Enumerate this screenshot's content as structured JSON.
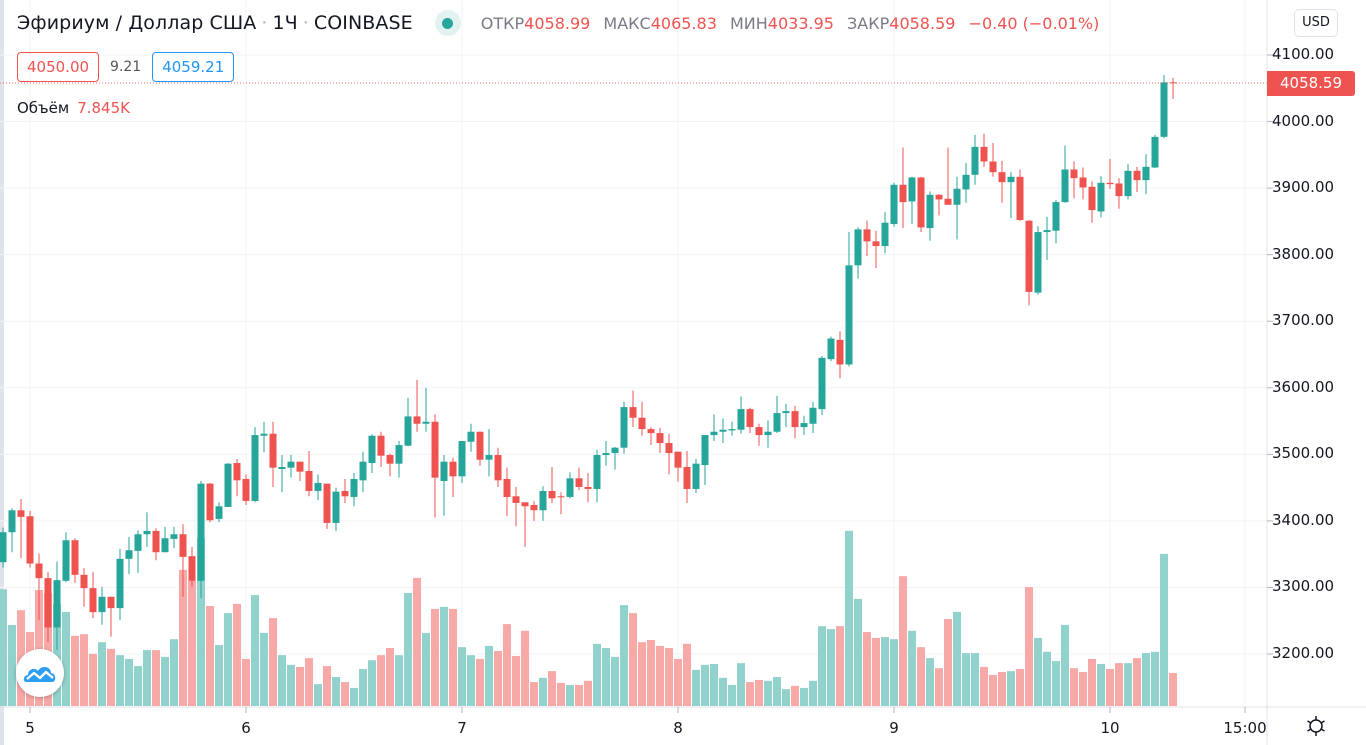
{
  "header": {
    "title": "Эфириум / Доллар США",
    "interval": "1Ч",
    "exchange": "COINBASE",
    "market_status": "open",
    "open_label": "ОТКР",
    "open": "4058.99",
    "high_label": "МАКС",
    "high": "4065.83",
    "low_label": "МИН",
    "low": "4033.95",
    "close_label": "ЗАКР",
    "close": "4058.59",
    "change": "−0.40 (−0.01%)"
  },
  "trade": {
    "sell": "4050.00",
    "spread": "9.21",
    "buy": "4059.21"
  },
  "volume_legend": {
    "label": "Объём",
    "value": "7.845K"
  },
  "currency_button": "USD",
  "last_price_label": "4058.59",
  "colors": {
    "up": "#26a69a",
    "down": "#ef5350",
    "up_volume": "#92d2cc",
    "down_volume": "#f7a9a7",
    "grid": "#f0f3fa"
  },
  "icons": {
    "status": "green-dot",
    "logo": "tradingview-cloud",
    "settings": "gear-icon"
  },
  "chart_data": {
    "type": "candlestick",
    "interval": "1 hour",
    "price_axis": {
      "ticks": [
        "4100.00",
        "4000.00",
        "3900.00",
        "3800.00",
        "3700.00",
        "3600.00",
        "3500.00",
        "3400.00",
        "3300.00",
        "3200.00"
      ],
      "range": [
        3120,
        4110
      ],
      "grid": true
    },
    "time_axis": {
      "ticks": [
        "5",
        "6",
        "7",
        "8",
        "9",
        "10",
        "15:00"
      ],
      "grid": true
    },
    "ohlc": [
      [
        3338,
        3390,
        3330,
        3383
      ],
      [
        3383,
        3419,
        3353,
        3416
      ],
      [
        3416,
        3433,
        3344,
        3406
      ],
      [
        3407,
        3415,
        3330,
        3336
      ],
      [
        3336,
        3351,
        3251,
        3314
      ],
      [
        3314,
        3323,
        3218,
        3240
      ],
      [
        3240,
        3339,
        3206,
        3311
      ],
      [
        3310,
        3383,
        3308,
        3371
      ],
      [
        3371,
        3374,
        3307,
        3319
      ],
      [
        3319,
        3329,
        3271,
        3299
      ],
      [
        3299,
        3323,
        3254,
        3263
      ],
      [
        3263,
        3301,
        3244,
        3286
      ],
      [
        3286,
        3286,
        3226,
        3269
      ],
      [
        3269,
        3358,
        3251,
        3343
      ],
      [
        3343,
        3376,
        3320,
        3356
      ],
      [
        3355,
        3386,
        3322,
        3380
      ],
      [
        3380,
        3413,
        3361,
        3385
      ],
      [
        3385,
        3389,
        3341,
        3353
      ],
      [
        3353,
        3391,
        3353,
        3374
      ],
      [
        3373,
        3391,
        3359,
        3380
      ],
      [
        3380,
        3395,
        3286,
        3346
      ],
      [
        3347,
        3361,
        3301,
        3310
      ],
      [
        3310,
        3460,
        3284,
        3456
      ],
      [
        3456,
        3457,
        3398,
        3401
      ],
      [
        3403,
        3428,
        3398,
        3422
      ],
      [
        3421,
        3487,
        3421,
        3486
      ],
      [
        3487,
        3493,
        3437,
        3461
      ],
      [
        3463,
        3470,
        3424,
        3430
      ],
      [
        3430,
        3541,
        3428,
        3529
      ],
      [
        3528,
        3549,
        3503,
        3531
      ],
      [
        3531,
        3549,
        3451,
        3480
      ],
      [
        3478,
        3499,
        3443,
        3481
      ],
      [
        3480,
        3499,
        3465,
        3489
      ],
      [
        3489,
        3489,
        3460,
        3474
      ],
      [
        3475,
        3505,
        3437,
        3445
      ],
      [
        3445,
        3470,
        3431,
        3457
      ],
      [
        3456,
        3456,
        3388,
        3397
      ],
      [
        3397,
        3450,
        3385,
        3444
      ],
      [
        3445,
        3463,
        3427,
        3437
      ],
      [
        3436,
        3472,
        3422,
        3463
      ],
      [
        3461,
        3504,
        3443,
        3489
      ],
      [
        3487,
        3530,
        3472,
        3528
      ],
      [
        3528,
        3534,
        3481,
        3498
      ],
      [
        3499,
        3501,
        3467,
        3486
      ],
      [
        3486,
        3520,
        3465,
        3514
      ],
      [
        3513,
        3585,
        3512,
        3557
      ],
      [
        3557,
        3612,
        3534,
        3546
      ],
      [
        3546,
        3600,
        3534,
        3549
      ],
      [
        3549,
        3560,
        3405,
        3465
      ],
      [
        3460,
        3499,
        3408,
        3489
      ],
      [
        3489,
        3495,
        3436,
        3467
      ],
      [
        3467,
        3520,
        3457,
        3520
      ],
      [
        3519,
        3546,
        3504,
        3534
      ],
      [
        3534,
        3534,
        3483,
        3492
      ],
      [
        3492,
        3538,
        3467,
        3499
      ],
      [
        3499,
        3510,
        3451,
        3461
      ],
      [
        3463,
        3480,
        3407,
        3436
      ],
      [
        3437,
        3451,
        3392,
        3427
      ],
      [
        3428,
        3428,
        3361,
        3422
      ],
      [
        3424,
        3430,
        3400,
        3416
      ],
      [
        3416,
        3452,
        3400,
        3445
      ],
      [
        3445,
        3481,
        3427,
        3434
      ],
      [
        3437,
        3443,
        3410,
        3436
      ],
      [
        3436,
        3473,
        3434,
        3464
      ],
      [
        3464,
        3480,
        3446,
        3451
      ],
      [
        3451,
        3472,
        3428,
        3448
      ],
      [
        3448,
        3507,
        3428,
        3499
      ],
      [
        3499,
        3520,
        3483,
        3502
      ],
      [
        3502,
        3511,
        3477,
        3510
      ],
      [
        3510,
        3579,
        3501,
        3571
      ],
      [
        3571,
        3596,
        3541,
        3555
      ],
      [
        3555,
        3579,
        3528,
        3538
      ],
      [
        3538,
        3541,
        3514,
        3532
      ],
      [
        3532,
        3540,
        3502,
        3517
      ],
      [
        3517,
        3531,
        3470,
        3502
      ],
      [
        3504,
        3504,
        3459,
        3480
      ],
      [
        3481,
        3505,
        3427,
        3448
      ],
      [
        3448,
        3493,
        3442,
        3486
      ],
      [
        3484,
        3529,
        3454,
        3529
      ],
      [
        3529,
        3560,
        3520,
        3534
      ],
      [
        3534,
        3554,
        3517,
        3537
      ],
      [
        3536,
        3549,
        3528,
        3538
      ],
      [
        3537,
        3587,
        3531,
        3568
      ],
      [
        3568,
        3570,
        3532,
        3541
      ],
      [
        3541,
        3546,
        3513,
        3529
      ],
      [
        3529,
        3551,
        3510,
        3534
      ],
      [
        3534,
        3588,
        3532,
        3562
      ],
      [
        3562,
        3576,
        3541,
        3565
      ],
      [
        3565,
        3573,
        3524,
        3541
      ],
      [
        3541,
        3558,
        3529,
        3547
      ],
      [
        3546,
        3579,
        3532,
        3570
      ],
      [
        3568,
        3648,
        3559,
        3645
      ],
      [
        3643,
        3677,
        3640,
        3674
      ],
      [
        3672,
        3685,
        3614,
        3635
      ],
      [
        3635,
        3834,
        3632,
        3784
      ],
      [
        3784,
        3841,
        3764,
        3838
      ],
      [
        3838,
        3851,
        3798,
        3820
      ],
      [
        3820,
        3836,
        3780,
        3813
      ],
      [
        3813,
        3864,
        3802,
        3848
      ],
      [
        3846,
        3908,
        3842,
        3905
      ],
      [
        3905,
        3961,
        3840,
        3879
      ],
      [
        3880,
        3917,
        3846,
        3916
      ],
      [
        3916,
        3917,
        3834,
        3841
      ],
      [
        3840,
        3895,
        3821,
        3890
      ],
      [
        3890,
        3891,
        3859,
        3883
      ],
      [
        3884,
        3961,
        3875,
        3875
      ],
      [
        3875,
        3917,
        3823,
        3899
      ],
      [
        3898,
        3938,
        3878,
        3920
      ],
      [
        3920,
        3980,
        3905,
        3962
      ],
      [
        3962,
        3982,
        3932,
        3940
      ],
      [
        3940,
        3968,
        3917,
        3924
      ],
      [
        3924,
        3941,
        3878,
        3909
      ],
      [
        3909,
        3924,
        3855,
        3917
      ],
      [
        3917,
        3928,
        3851,
        3852
      ],
      [
        3851,
        3852,
        3724,
        3744
      ],
      [
        3743,
        3843,
        3740,
        3834
      ],
      [
        3834,
        3857,
        3792,
        3837
      ],
      [
        3836,
        3882,
        3817,
        3879
      ],
      [
        3879,
        3964,
        3878,
        3928
      ],
      [
        3928,
        3940,
        3885,
        3915
      ],
      [
        3916,
        3931,
        3883,
        3901
      ],
      [
        3902,
        3910,
        3848,
        3867
      ],
      [
        3865,
        3918,
        3856,
        3908
      ],
      [
        3908,
        3944,
        3899,
        3906
      ],
      [
        3907,
        3915,
        3869,
        3888
      ],
      [
        3888,
        3936,
        3883,
        3926
      ],
      [
        3926,
        3932,
        3894,
        3912
      ],
      [
        3912,
        3951,
        3891,
        3932
      ],
      [
        3931,
        3980,
        3930,
        3977
      ],
      [
        3977,
        4070,
        3975,
        4059
      ],
      [
        4058.99,
        4065.83,
        4033.95,
        4058.59
      ]
    ],
    "volume_k": [
      27.8,
      19.3,
      22.8,
      17.6,
      27.6,
      26.9,
      24.3,
      22.4,
      16.7,
      17.1,
      12.4,
      15.2,
      13.6,
      12.1,
      11.2,
      9.5,
      13.3,
      13.3,
      11.7,
      15.9,
      32.4,
      29.8,
      40.0,
      23.8,
      14.5,
      22.1,
      24.3,
      11.2,
      26.4,
      17.4,
      20.9,
      12.1,
      9.8,
      9.3,
      11.4,
      5.2,
      9.5,
      6.9,
      5.7,
      4.3,
      8.8,
      10.9,
      12.1,
      13.8,
      12.1,
      26.9,
      30.5,
      17.4,
      23.1,
      23.6,
      23.1,
      14.0,
      12.1,
      11.2,
      14.3,
      13.1,
      19.5,
      11.9,
      17.9,
      5.7,
      6.7,
      8.3,
      5.5,
      5.0,
      5.0,
      6.0,
      14.8,
      13.8,
      11.7,
      24.0,
      22.1,
      15.2,
      15.7,
      14.3,
      13.8,
      11.2,
      14.8,
      8.6,
      9.8,
      10.0,
      6.7,
      5.0,
      10.2,
      5.7,
      6.2,
      6.0,
      6.9,
      4.0,
      4.8,
      4.3,
      6.0,
      19.0,
      18.3,
      19.0,
      41.7,
      25.5,
      17.6,
      16.2,
      16.4,
      15.9,
      30.9,
      17.9,
      14.0,
      11.4,
      9.0,
      20.7,
      22.4,
      12.6,
      12.6,
      9.3,
      7.4,
      8.1,
      8.3,
      8.8,
      28.3,
      16.2,
      12.9,
      10.7,
      19.3,
      9.0,
      8.1,
      11.2,
      10.0,
      8.8,
      10.2,
      10.2,
      11.4,
      12.6,
      12.9,
      36.2,
      7.845
    ]
  }
}
